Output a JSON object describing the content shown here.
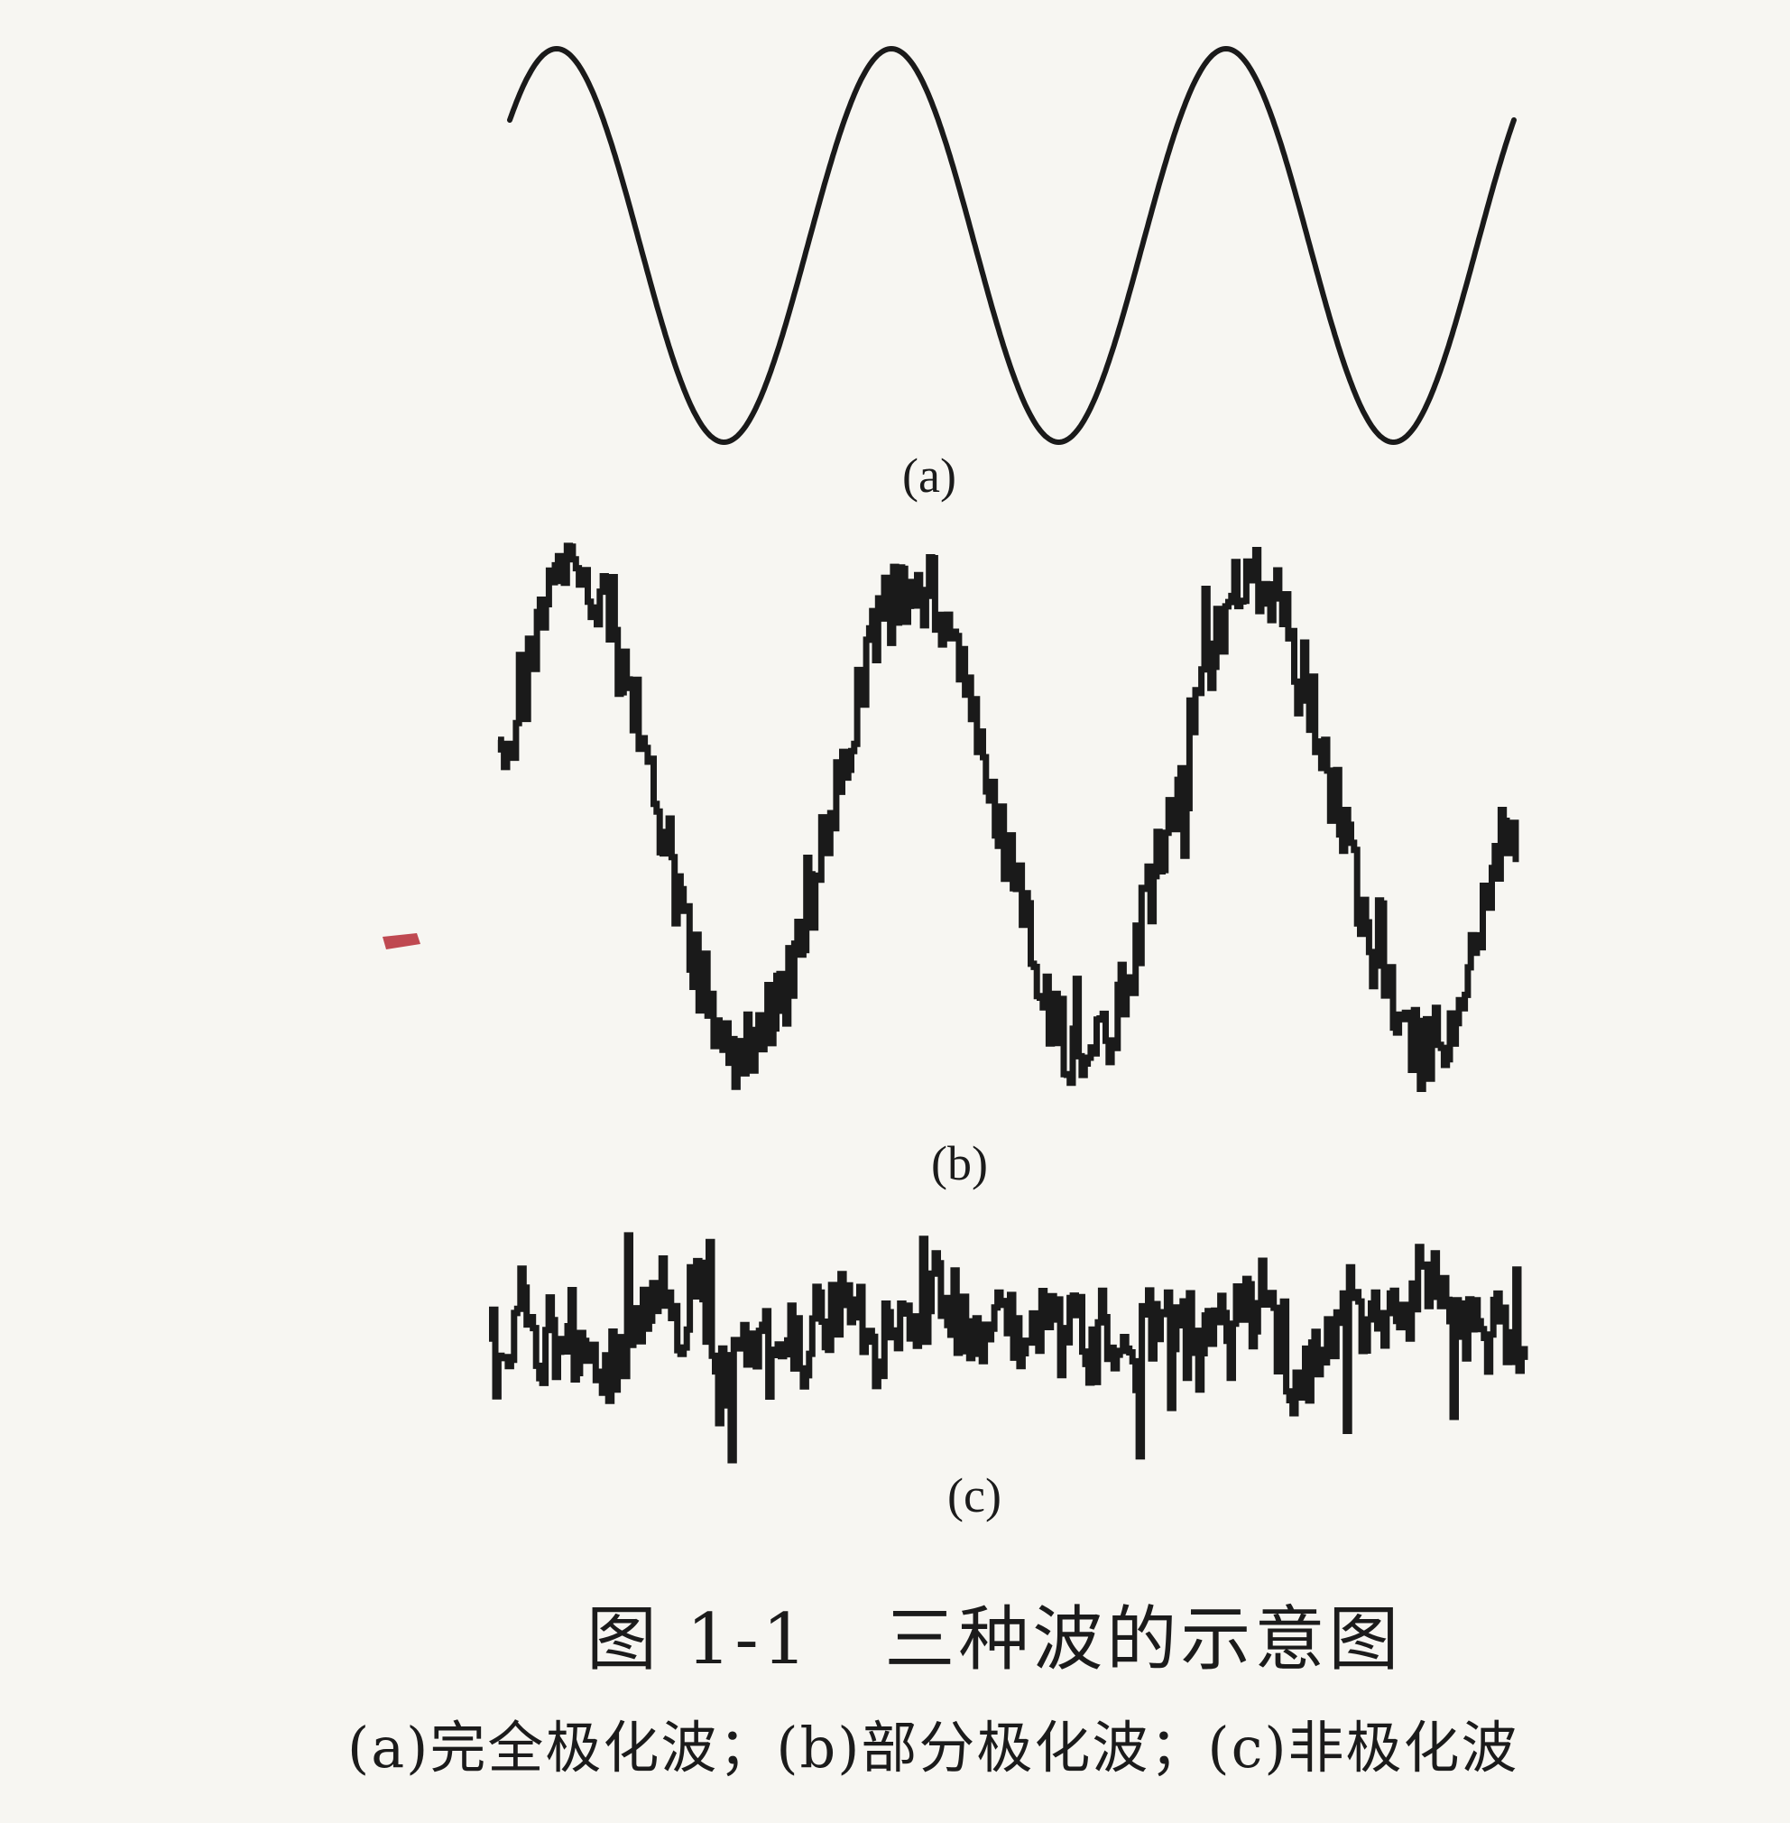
{
  "figure": {
    "caption_title": "图 1-1　三种波的示意图",
    "caption_subtitle": "(a)完全极化波；(b)部分极化波；(c)非极化波",
    "panels": [
      {
        "id": "a",
        "label": "(a)",
        "wave_type": "sinusoid",
        "cycles": 3,
        "noise": "none"
      },
      {
        "id": "b",
        "label": "(b)",
        "wave_type": "sinusoid",
        "cycles": 3,
        "noise": "moderate"
      },
      {
        "id": "c",
        "label": "(c)",
        "wave_type": "random",
        "cycles": 0,
        "noise": "full"
      }
    ],
    "colors": {
      "ink": "#1a1a1a",
      "paper": "#f7f6f2"
    }
  }
}
